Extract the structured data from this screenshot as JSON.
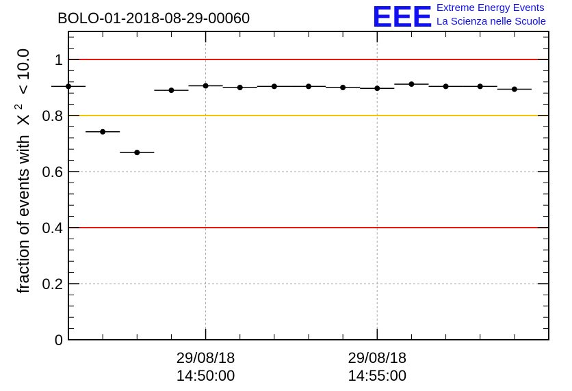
{
  "chart_data": {
    "type": "scatter",
    "title": "BOLO-01-2018-08-29-00060",
    "ylabel": "fraction of events with",
    "ylabel_symbol": "X",
    "ylabel_exponent": "2",
    "ylabel_tail": "< 10.0",
    "xlabel": "",
    "ylim": [
      0,
      1.1
    ],
    "xlim": [
      "2018-08-29 14:46:00",
      "2018-08-29 15:00:00"
    ],
    "bin_minutes": 1,
    "yticks": [
      0,
      0.2,
      0.4,
      0.6,
      0.8,
      1
    ],
    "ytick_labels": [
      "0",
      "0.2",
      "0.4",
      "0.6",
      "0.8",
      "1"
    ],
    "xticks": [
      {
        "time": "2018-08-29 14:50:00",
        "date_label": "29/08/18",
        "time_label": "14:50:00"
      },
      {
        "time": "2018-08-29 14:55:00",
        "date_label": "29/08/18",
        "time_label": "14:55:00"
      }
    ],
    "grid": true,
    "reference_lines": [
      {
        "y": 1.0,
        "color": "#e8140e"
      },
      {
        "y": 0.8,
        "color": "#f5c400"
      },
      {
        "y": 0.4,
        "color": "#e8140e"
      }
    ],
    "series": [
      {
        "x": [
          "2018-08-29 14:46:00",
          "2018-08-29 14:47:00",
          "2018-08-29 14:48:00",
          "2018-08-29 14:49:00",
          "2018-08-29 14:50:00",
          "2018-08-29 14:51:00",
          "2018-08-29 14:52:00",
          "2018-08-29 14:53:00",
          "2018-08-29 14:54:00",
          "2018-08-29 14:55:00",
          "2018-08-29 14:56:00",
          "2018-08-29 14:57:00",
          "2018-08-29 14:58:00",
          "2018-08-29 14:59:00"
        ],
        "values": [
          0.904,
          0.742,
          0.668,
          0.89,
          0.906,
          0.9,
          0.904,
          0.904,
          0.9,
          0.897,
          0.912,
          0.904,
          0.904,
          0.894
        ]
      }
    ]
  },
  "logo": {
    "mark": "EEE",
    "line1": "Extreme Energy Events",
    "line2": "La Scienza nelle Scuole",
    "color": "#1010f0"
  }
}
